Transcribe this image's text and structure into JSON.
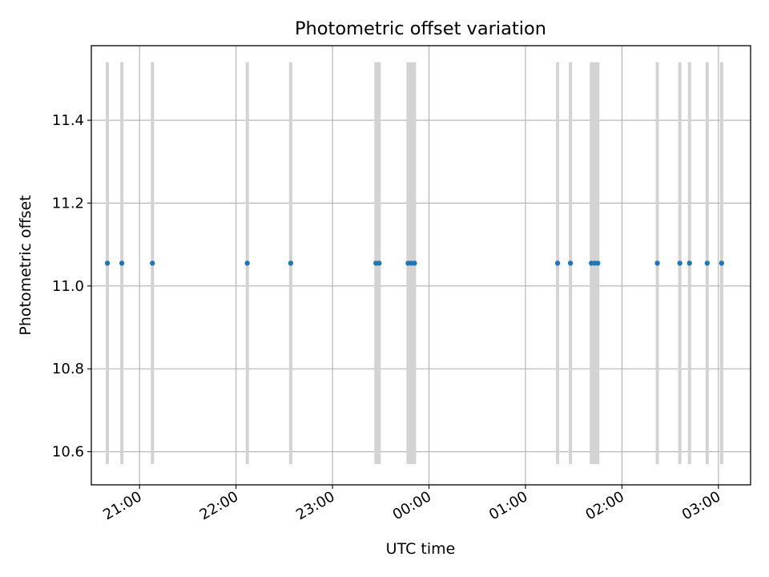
{
  "chart_data": {
    "type": "scatter",
    "title": "Photometric offset variation",
    "xlabel": "UTC time",
    "ylabel": "Photometric offset",
    "x_axis": {
      "kind": "time",
      "range": [
        "20:30",
        "03:20"
      ],
      "ticks": [
        "21:00",
        "22:00",
        "23:00",
        "00:00",
        "01:00",
        "02:00",
        "03:00"
      ],
      "tick_rotation_deg": 30
    },
    "y_axis": {
      "range": [
        10.52,
        11.58
      ],
      "ticks": [
        "10.6",
        "10.8",
        "11.0",
        "11.2",
        "11.4"
      ],
      "tick_values": [
        10.6,
        10.8,
        11.0,
        11.2,
        11.4
      ]
    },
    "grid": true,
    "series": [
      {
        "marker_color": "#1f77b4",
        "points": [
          {
            "x": "20:40",
            "y": 11.055
          },
          {
            "x": "20:49",
            "y": 11.055
          },
          {
            "x": "21:08",
            "y": 11.055
          },
          {
            "x": "22:07",
            "y": 11.055
          },
          {
            "x": "22:34",
            "y": 11.055
          },
          {
            "x": "23:27",
            "y": 11.055
          },
          {
            "x": "23:29",
            "y": 11.055
          },
          {
            "x": "23:47",
            "y": 11.055
          },
          {
            "x": "23:49",
            "y": 11.055
          },
          {
            "x": "23:51",
            "y": 11.055
          },
          {
            "x": "01:20",
            "y": 11.055
          },
          {
            "x": "01:28",
            "y": 11.055
          },
          {
            "x": "01:41",
            "y": 11.055
          },
          {
            "x": "01:43",
            "y": 11.055
          },
          {
            "x": "01:45",
            "y": 11.055
          },
          {
            "x": "02:22",
            "y": 11.055
          },
          {
            "x": "02:36",
            "y": 11.055
          },
          {
            "x": "02:42",
            "y": 11.055
          },
          {
            "x": "02:53",
            "y": 11.055
          },
          {
            "x": "03:02",
            "y": 11.055
          }
        ]
      }
    ],
    "bands": {
      "color": "#d3d3d3",
      "y_range": [
        10.57,
        11.54
      ],
      "intervals": [
        [
          "20:39",
          "20:41"
        ],
        [
          "20:48",
          "20:50"
        ],
        [
          "21:07",
          "21:09"
        ],
        [
          "22:06",
          "22:08"
        ],
        [
          "22:33",
          "22:35"
        ],
        [
          "23:26",
          "23:30"
        ],
        [
          "23:46",
          "23:52"
        ],
        [
          "01:19",
          "01:21"
        ],
        [
          "01:27",
          "01:29"
        ],
        [
          "01:40",
          "01:46"
        ],
        [
          "02:21",
          "02:23"
        ],
        [
          "02:35",
          "02:37"
        ],
        [
          "02:41",
          "02:43"
        ],
        [
          "02:52",
          "02:54"
        ],
        [
          "03:01",
          "03:03"
        ]
      ]
    }
  }
}
